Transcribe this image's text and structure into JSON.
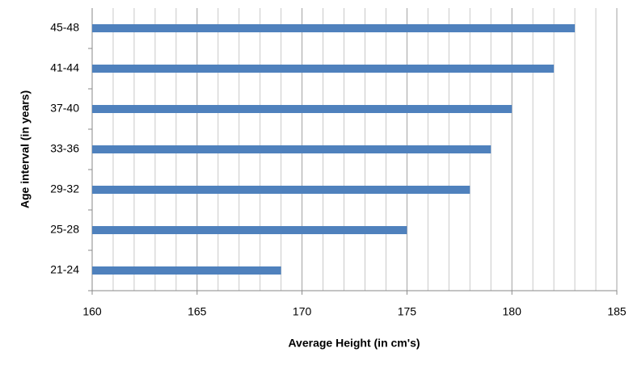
{
  "chart_data": {
    "type": "bar",
    "orientation": "horizontal",
    "x_label": "Average Height (in cm's)",
    "y_label": "Age interval (in years)",
    "categories": [
      "21-24",
      "25-28",
      "29-32",
      "33-36",
      "37-40",
      "41-44",
      "45-48"
    ],
    "values": [
      169,
      175,
      178,
      179,
      180,
      182,
      183
    ],
    "color": "#4f81bd",
    "xlim": [
      160,
      185
    ],
    "xticks": [
      160,
      165,
      170,
      175,
      180,
      185
    ],
    "grid": true,
    "minor_grid": true
  }
}
